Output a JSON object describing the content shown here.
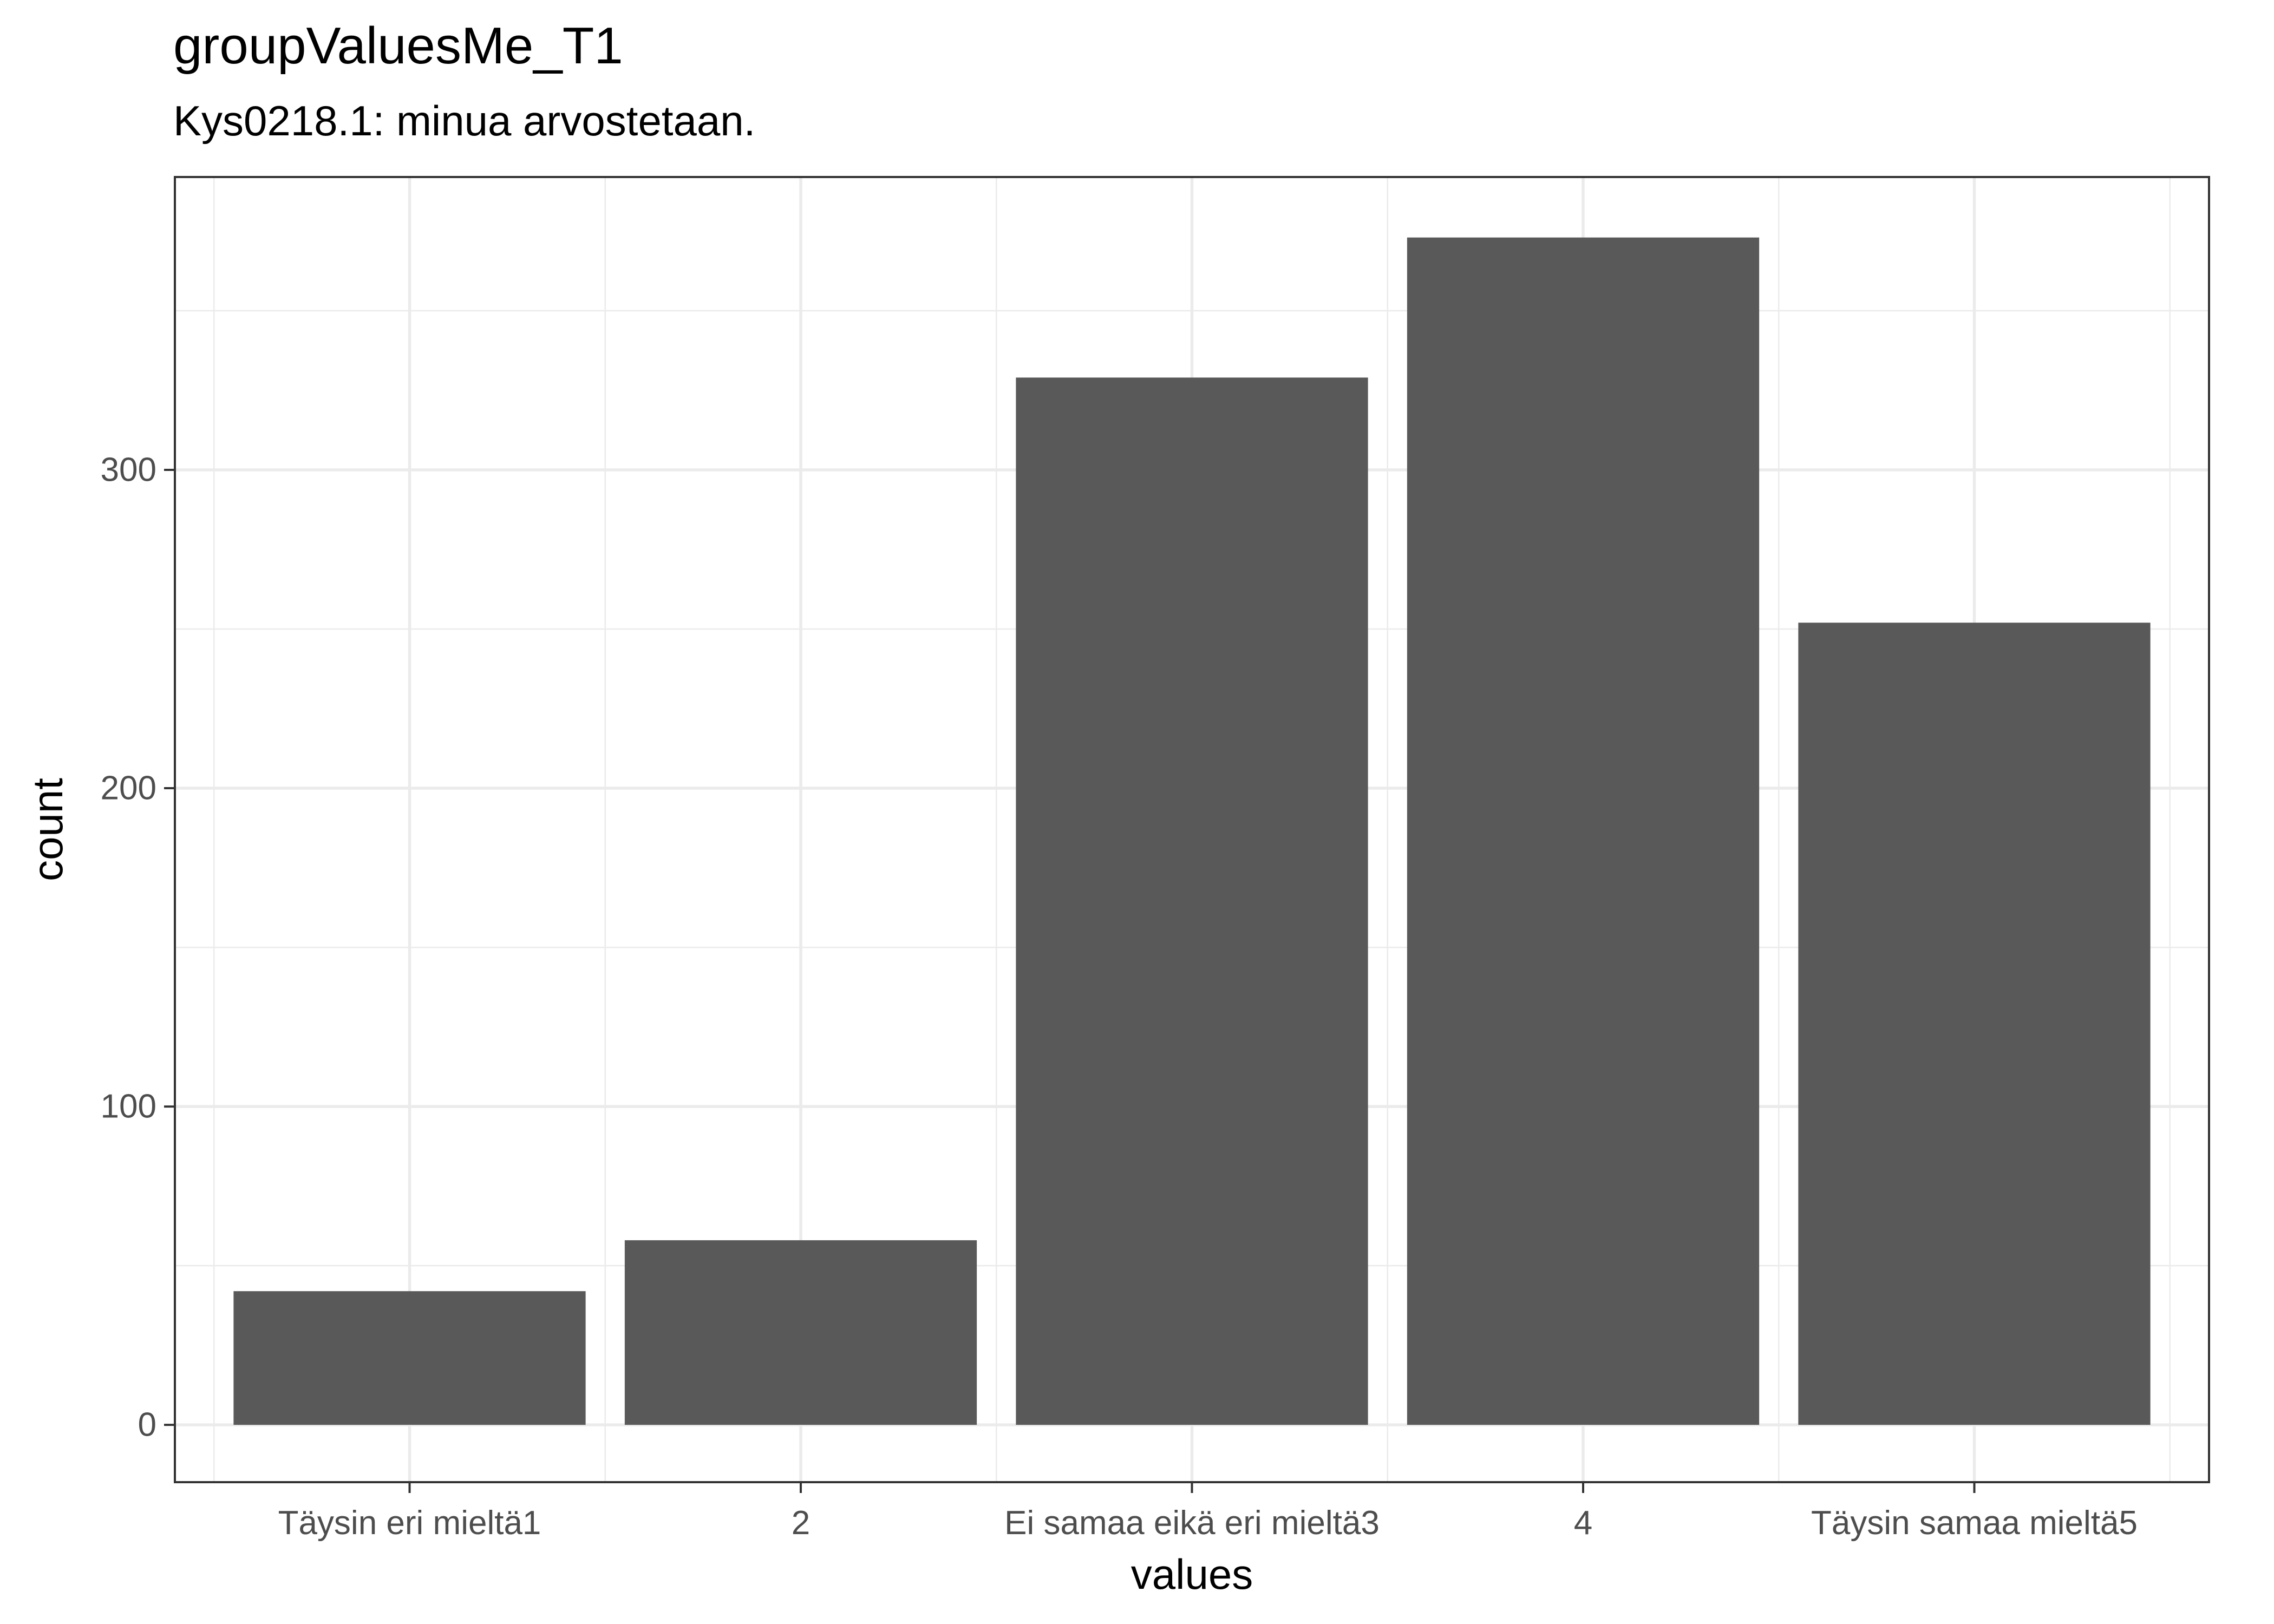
{
  "chart_data": {
    "type": "bar",
    "title": "groupValuesMe_T1",
    "subtitle": "Kys0218.1: minua arvostetaan.",
    "xlabel": "values",
    "ylabel": "count",
    "categories": [
      "Täysin eri mieltä1",
      "2",
      "Ei samaa eikä eri mieltä3",
      "4",
      "Täysin samaa mieltä5"
    ],
    "values": [
      42,
      58,
      329,
      373,
      252
    ],
    "ylim": [
      -18,
      392
    ],
    "yticks": [
      0,
      100,
      200,
      300
    ],
    "grid": true,
    "legend": "none",
    "bar_color": "#595959",
    "grid_color": "#ebebeb",
    "panel_border_color": "#333333"
  }
}
